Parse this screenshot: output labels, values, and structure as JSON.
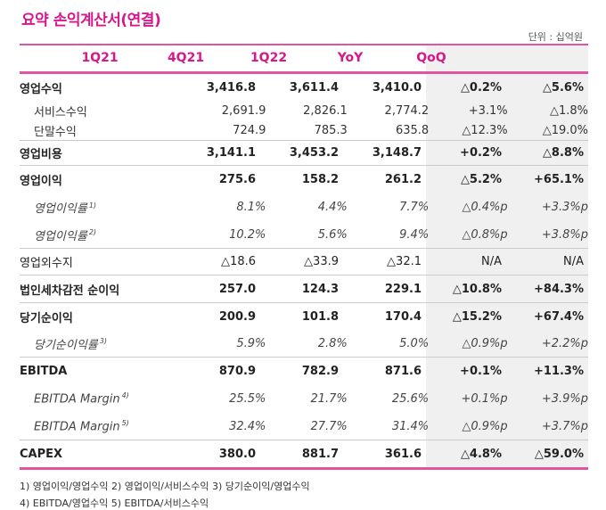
{
  "title": "요약 손익계산서(연결)",
  "unit": "단위 : 십억원",
  "columns": [
    "1Q21",
    "4Q21",
    "1Q22",
    "YoY",
    "QoQ"
  ],
  "rows": [
    {
      "label": "영업수익",
      "note": "",
      "values": [
        "3,416.8",
        "3,611.4",
        "3,410.0",
        "△0.2%",
        "△5.6%"
      ]
    },
    {
      "label": "서비스수익",
      "note": "",
      "values": [
        "2,691.9",
        "2,826.1",
        "2,774.2",
        "+3.1%",
        "△1.8%"
      ]
    },
    {
      "label": "단말수익",
      "note": "",
      "values": [
        "724.9",
        "785.3",
        "635.8",
        "△12.3%",
        "△19.0%"
      ]
    },
    {
      "label": "영업비용",
      "note": "",
      "values": [
        "3,141.1",
        "3,453.2",
        "3,148.7",
        "+0.2%",
        "△8.8%"
      ]
    },
    {
      "label": "영업이익",
      "note": "",
      "values": [
        "275.6",
        "158.2",
        "261.2",
        "△5.2%",
        "+65.1%"
      ]
    },
    {
      "label": "영업이익률",
      "note": "1)",
      "values": [
        "8.1%",
        "4.4%",
        "7.7%",
        "△0.4%p",
        "+3.3%p"
      ]
    },
    {
      "label": "영업이익률",
      "note": "2)",
      "values": [
        "10.2%",
        "5.6%",
        "9.4%",
        "△0.8%p",
        "+3.8%p"
      ]
    },
    {
      "label": "영업외수지",
      "note": "",
      "values": [
        "△18.6",
        "△33.9",
        "△32.1",
        "N/A",
        "N/A"
      ]
    },
    {
      "label": "법인세차감전 순이익",
      "note": "",
      "values": [
        "257.0",
        "124.3",
        "229.1",
        "△10.8%",
        "+84.3%"
      ]
    },
    {
      "label": "당기순이익",
      "note": "",
      "values": [
        "200.9",
        "101.8",
        "170.4",
        "△15.2%",
        "+67.4%"
      ]
    },
    {
      "label": "당기순이익률",
      "note": "3)",
      "values": [
        "5.9%",
        "2.8%",
        "5.0%",
        "△0.9%p",
        "+2.2%p"
      ]
    },
    {
      "label": "EBITDA",
      "note": "",
      "values": [
        "870.9",
        "782.9",
        "871.6",
        "+0.1%",
        "+11.3%"
      ]
    },
    {
      "label": "EBITDA Margin",
      "note": "4)",
      "values": [
        "25.5%",
        "21.7%",
        "25.6%",
        "+0.1%p",
        "+3.9%p"
      ]
    },
    {
      "label": "EBITDA Margin",
      "note": "5)",
      "values": [
        "32.4%",
        "27.7%",
        "31.4%",
        "△0.9%p",
        "+3.7%p"
      ]
    },
    {
      "label": "CAPEX",
      "note": "",
      "values": [
        "380.0",
        "881.7",
        "361.6",
        "△4.8%",
        "△59.0%"
      ]
    }
  ],
  "footnotes": [
    "1) 영업이익/영업수익  2) 영업이익/서비스수익  3) 당기순이익/영업수익",
    "4) EBITDA/영업수익  5) EBITDA/서비스수익"
  ],
  "colors": {
    "accent": "#d6188c",
    "rule": "#e0559f",
    "shade": "#f0f0f0"
  }
}
